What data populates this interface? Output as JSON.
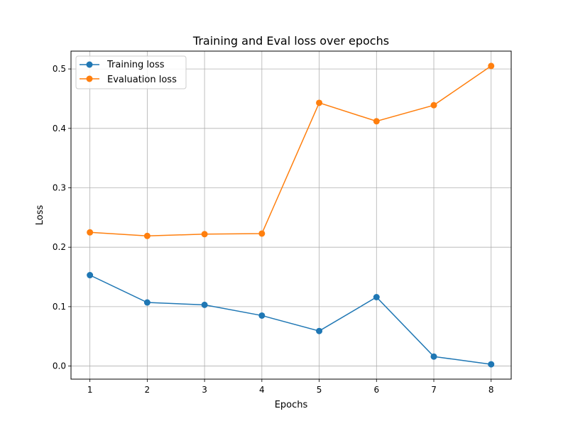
{
  "chart_data": {
    "type": "line",
    "title": "Training and Eval loss over epochs",
    "xlabel": "Epochs",
    "ylabel": "Loss",
    "x": [
      1,
      2,
      3,
      4,
      5,
      6,
      7,
      8
    ],
    "x_ticks": [
      "1",
      "2",
      "3",
      "4",
      "5",
      "6",
      "7",
      "8"
    ],
    "y_ticks": [
      "0.0",
      "0.1",
      "0.2",
      "0.3",
      "0.4",
      "0.5"
    ],
    "xlim": [
      0.67,
      8.35
    ],
    "ylim": [
      -0.022,
      0.53
    ],
    "grid": true,
    "legend_position": "top-left",
    "series": [
      {
        "name": "Training loss",
        "color": "#1f77b4",
        "marker": "circle",
        "values": [
          0.153,
          0.107,
          0.103,
          0.085,
          0.059,
          0.116,
          0.016,
          0.003
        ]
      },
      {
        "name": "Evaluation loss",
        "color": "#ff7f0e",
        "marker": "circle",
        "values": [
          0.225,
          0.219,
          0.222,
          0.223,
          0.443,
          0.412,
          0.439,
          0.505
        ]
      }
    ]
  }
}
